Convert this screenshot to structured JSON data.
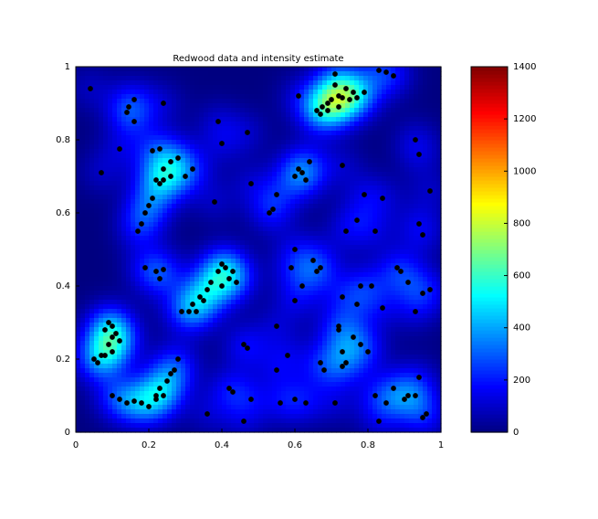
{
  "chart_data": {
    "type": "scatter",
    "title": "Redwood data and intensity estimate",
    "x": [
      0.71,
      0.71,
      0.74,
      0.72,
      0.73,
      0.75,
      0.77,
      0.76,
      0.79,
      0.675,
      0.66,
      0.67,
      0.69,
      0.7,
      0.69,
      0.72,
      0.83,
      0.85,
      0.87,
      0.04,
      0.14,
      0.145,
      0.16,
      0.16,
      0.24,
      0.12,
      0.07,
      0.21,
      0.23,
      0.24,
      0.26,
      0.26,
      0.28,
      0.32,
      0.3,
      0.22,
      0.23,
      0.24,
      0.21,
      0.2,
      0.18,
      0.19,
      0.17,
      0.39,
      0.4,
      0.47,
      0.61,
      0.6,
      0.62,
      0.63,
      0.61,
      0.64,
      0.48,
      0.53,
      0.54,
      0.55,
      0.38,
      0.39,
      0.4,
      0.41,
      0.42,
      0.43,
      0.37,
      0.36,
      0.34,
      0.35,
      0.33,
      0.31,
      0.32,
      0.29,
      0.44,
      0.4,
      0.19,
      0.22,
      0.24,
      0.23,
      0.09,
      0.1,
      0.08,
      0.1,
      0.11,
      0.09,
      0.1,
      0.08,
      0.07,
      0.05,
      0.06,
      0.12,
      0.1,
      0.12,
      0.14,
      0.16,
      0.18,
      0.2,
      0.22,
      0.23,
      0.24,
      0.25,
      0.26,
      0.27,
      0.28,
      0.22,
      0.36,
      0.42,
      0.43,
      0.46,
      0.48,
      0.46,
      0.47,
      0.55,
      0.58,
      0.55,
      0.56,
      0.6,
      0.63,
      0.6,
      0.59,
      0.6,
      0.62,
      0.66,
      0.67,
      0.65,
      0.67,
      0.68,
      0.72,
      0.72,
      0.73,
      0.73,
      0.74,
      0.71,
      0.76,
      0.78,
      0.77,
      0.8,
      0.78,
      0.73,
      0.74,
      0.77,
      0.73,
      0.79,
      0.82,
      0.84,
      0.88,
      0.89,
      0.81,
      0.84,
      0.83,
      0.82,
      0.85,
      0.87,
      0.9,
      0.91,
      0.93,
      0.95,
      0.96,
      0.94,
      0.93,
      0.95,
      0.97,
      0.94,
      0.93,
      0.94,
      0.95,
      0.97,
      0.91
    ],
    "y": [
      0.98,
      0.95,
      0.94,
      0.92,
      0.915,
      0.91,
      0.915,
      0.93,
      0.93,
      0.89,
      0.88,
      0.87,
      0.88,
      0.91,
      0.9,
      0.89,
      0.99,
      0.985,
      0.975,
      0.94,
      0.875,
      0.89,
      0.91,
      0.85,
      0.9,
      0.775,
      0.71,
      0.77,
      0.775,
      0.72,
      0.74,
      0.7,
      0.75,
      0.72,
      0.7,
      0.69,
      0.68,
      0.69,
      0.64,
      0.62,
      0.57,
      0.6,
      0.55,
      0.85,
      0.79,
      0.82,
      0.92,
      0.7,
      0.71,
      0.69,
      0.72,
      0.74,
      0.68,
      0.6,
      0.61,
      0.65,
      0.63,
      0.44,
      0.46,
      0.45,
      0.42,
      0.44,
      0.41,
      0.39,
      0.37,
      0.36,
      0.33,
      0.33,
      0.35,
      0.33,
      0.41,
      0.4,
      0.45,
      0.44,
      0.445,
      0.42,
      0.3,
      0.29,
      0.28,
      0.26,
      0.27,
      0.24,
      0.22,
      0.21,
      0.21,
      0.2,
      0.19,
      0.25,
      0.1,
      0.09,
      0.08,
      0.085,
      0.08,
      0.07,
      0.1,
      0.12,
      0.1,
      0.14,
      0.16,
      0.17,
      0.2,
      0.09,
      0.05,
      0.12,
      0.11,
      0.03,
      0.09,
      0.24,
      0.23,
      0.29,
      0.21,
      0.17,
      0.08,
      0.09,
      0.08,
      0.5,
      0.45,
      0.36,
      0.4,
      0.44,
      0.45,
      0.47,
      0.19,
      0.17,
      0.29,
      0.28,
      0.22,
      0.18,
      0.19,
      0.08,
      0.26,
      0.24,
      0.35,
      0.22,
      0.4,
      0.37,
      0.55,
      0.58,
      0.73,
      0.65,
      0.55,
      0.64,
      0.45,
      0.44,
      0.4,
      0.34,
      0.03,
      0.1,
      0.08,
      0.12,
      0.09,
      0.1,
      0.1,
      0.04,
      0.05,
      0.15,
      0.33,
      0.38,
      0.39,
      0.57,
      0.8,
      0.76,
      0.54,
      0.66,
      0.41
    ],
    "color": "#000000",
    "xlim": [
      0,
      1
    ],
    "ylim": [
      0,
      1
    ],
    "xticks": [
      0,
      0.2,
      0.4,
      0.6,
      0.8,
      1
    ],
    "yticks": [
      0,
      0.2,
      0.4,
      0.6,
      0.8,
      1
    ],
    "colorbar": {
      "colormap": "jet",
      "clim": [
        0,
        1400
      ],
      "ticks": [
        0,
        200,
        400,
        600,
        800,
        1000,
        1200,
        1400
      ]
    }
  }
}
